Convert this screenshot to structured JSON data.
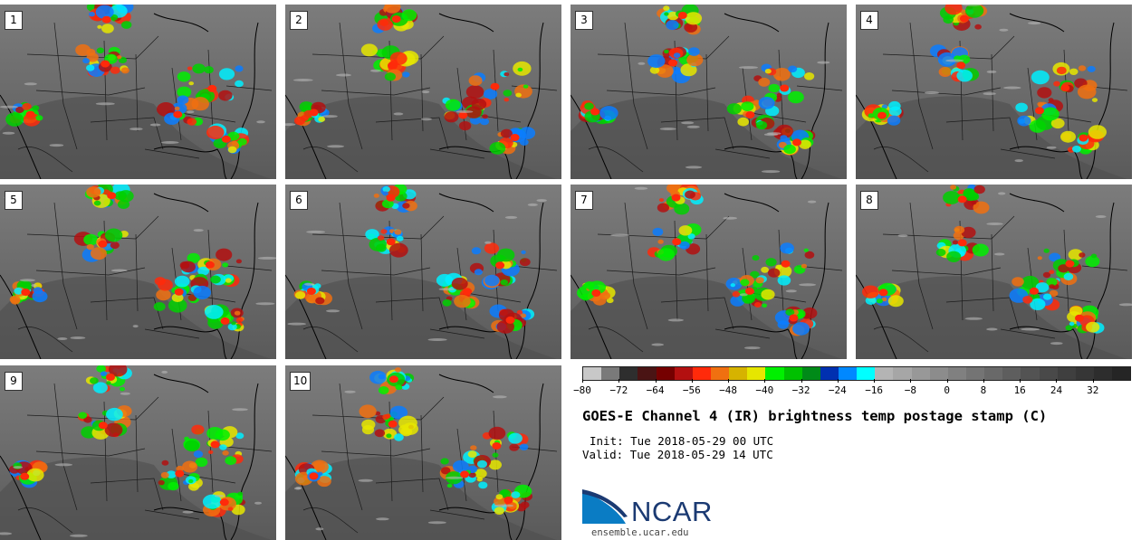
{
  "panels": [
    {
      "label": "1"
    },
    {
      "label": "2"
    },
    {
      "label": "3"
    },
    {
      "label": "4"
    },
    {
      "label": "5"
    },
    {
      "label": "6"
    },
    {
      "label": "7"
    },
    {
      "label": "8"
    },
    {
      "label": "9"
    },
    {
      "label": "10"
    }
  ],
  "colorbar": {
    "colors": [
      "#c8c8c8",
      "#7a7a7a",
      "#2e2e2e",
      "#4a1414",
      "#750000",
      "#b31010",
      "#ff2a0a",
      "#f07010",
      "#d6b300",
      "#e6e600",
      "#00f000",
      "#00c000",
      "#008a18",
      "#0030b0",
      "#0088ff",
      "#00ffff",
      "#b4b4b4",
      "#a6a6a6",
      "#989898",
      "#8c8c8c",
      "#808080",
      "#747474",
      "#696969",
      "#5e5e5e",
      "#535353",
      "#494949",
      "#3f3f3f",
      "#363636",
      "#2d2d2d",
      "#252525"
    ],
    "ticks": [
      "−80",
      "−72",
      "−64",
      "−56",
      "−48",
      "−40",
      "−32",
      "−24",
      "−16",
      "−8",
      "0",
      "8",
      "16",
      "24",
      "32"
    ]
  },
  "title": "GOES-E Channel 4 (IR) brightness temp postage stamp (C)",
  "init": "Init: Tue 2018-05-29 00 UTC",
  "valid": "Valid: Tue 2018-05-29 14 UTC",
  "logo": {
    "text": "NCAR",
    "site": "ensemble.ucar.edu"
  }
}
